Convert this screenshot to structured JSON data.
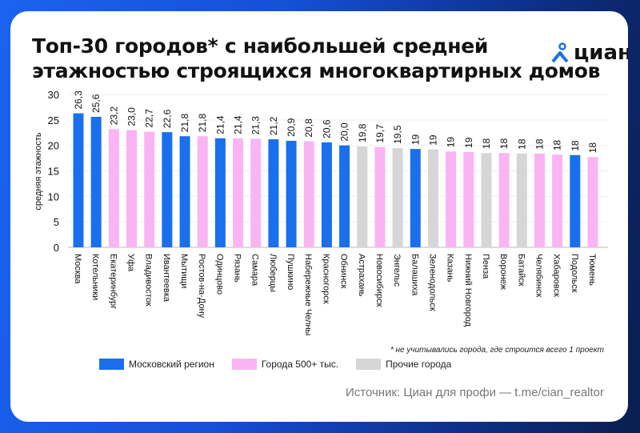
{
  "title_line1": "Топ-30 городов* с наибольшей средней",
  "title_line2": "этажностью строящихся многоквартирных домов",
  "logo_text": "циан",
  "footnote": "* не учитывались города, где строится всего 1 проект",
  "source": "Источник: Циан для профи — t.me/cian_realtor",
  "colors": {
    "moscow_region": "#1a6fec",
    "city_500k": "#f9b5f3",
    "other": "#d6d6d6",
    "brand": "#1a6fec"
  },
  "chart_data": {
    "type": "bar",
    "ylabel": "средняя этажность",
    "ylim": [
      0,
      30
    ],
    "yticks": [
      0,
      5,
      10,
      15,
      20,
      25,
      30
    ],
    "grid": true,
    "legend_placement": "bottom",
    "legend": [
      {
        "key": "moscow_region",
        "name": "Московский регион"
      },
      {
        "key": "city_500k",
        "name": "Города 500+ тыс."
      },
      {
        "key": "other",
        "name": "Прочие города"
      }
    ],
    "categories": [
      "Москва",
      "Котельники",
      "Екатеринбург",
      "Уфа",
      "Владивосток",
      "Ивантеевка",
      "Мытищи",
      "Ростов-на-Дону",
      "Одинцово",
      "Рязань",
      "Самара",
      "Люберцы",
      "Пушкино",
      "Набережные Челны",
      "Красногорск",
      "Обнинск",
      "Астрахань",
      "Новосибирск",
      "Энгельс",
      "Балашиха",
      "Зеленодольск",
      "Казань",
      "Нижний Новгород",
      "Пенза",
      "Воронеж",
      "Батайск",
      "Челябинск",
      "Хабаровск",
      "Подольск",
      "Тюмень"
    ],
    "values": [
      26.3,
      25.6,
      23.2,
      23.0,
      22.7,
      22.6,
      21.8,
      21.8,
      21.4,
      21.4,
      21.3,
      21.2,
      20.9,
      20.8,
      20.6,
      20.0,
      19.8,
      19.7,
      19.5,
      19.3,
      19.2,
      18.8,
      18.7,
      18.5,
      18.5,
      18.4,
      18.4,
      18.2,
      18.1,
      17.7
    ],
    "labels": [
      "26,3",
      "25,6",
      "23,2",
      "23,0",
      "22,7",
      "22,6",
      "21,8",
      "21,8",
      "21,4",
      "21,4",
      "21,3",
      "21,2",
      "20,9",
      "20,8",
      "20,6",
      "20,0",
      "19,8",
      "19,7",
      "19,5",
      "19",
      "19",
      "19",
      "19",
      "18",
      "18",
      "18",
      "18",
      "18",
      "18",
      "18"
    ],
    "groups": [
      "moscow_region",
      "moscow_region",
      "city_500k",
      "city_500k",
      "city_500k",
      "moscow_region",
      "moscow_region",
      "city_500k",
      "moscow_region",
      "city_500k",
      "city_500k",
      "moscow_region",
      "moscow_region",
      "city_500k",
      "moscow_region",
      "moscow_region",
      "other",
      "city_500k",
      "other",
      "moscow_region",
      "other",
      "city_500k",
      "city_500k",
      "other",
      "city_500k",
      "other",
      "city_500k",
      "city_500k",
      "moscow_region",
      "city_500k"
    ]
  }
}
